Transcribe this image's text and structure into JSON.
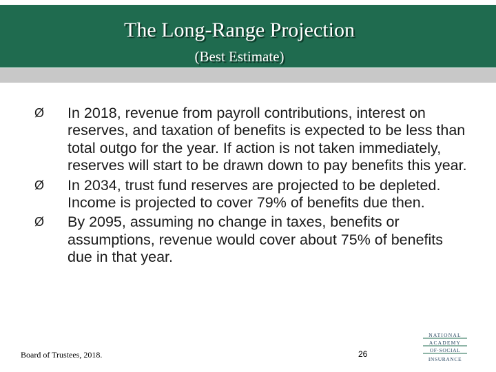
{
  "header": {
    "title": "The Long-Range Projection",
    "subtitle": "(Best Estimate)",
    "background_color": "#1f6b4f"
  },
  "bullets": [
    {
      "marker": "Ø",
      "text": "In 2018, revenue from payroll contributions, interest on reserves, and taxation of benefits is expected to be less than total outgo for the year. If action is not taken immediately, reserves will start to be drawn down to pay benefits this year."
    },
    {
      "marker": "Ø",
      "text": "In 2034, trust fund reserves are projected to be depleted. Income is projected to cover 79% of benefits due then."
    },
    {
      "marker": "Ø",
      "text": "By 2095, assuming no change in taxes, benefits or assumptions, revenue would cover about 75% of benefits due in that year."
    }
  ],
  "footer": {
    "source": "Board of Trustees, 2018.",
    "page_number": "26"
  },
  "logo": {
    "lines": [
      "NATIONAL",
      "ACADEMY",
      "OF·SOCIAL",
      "INSURANCE"
    ]
  }
}
